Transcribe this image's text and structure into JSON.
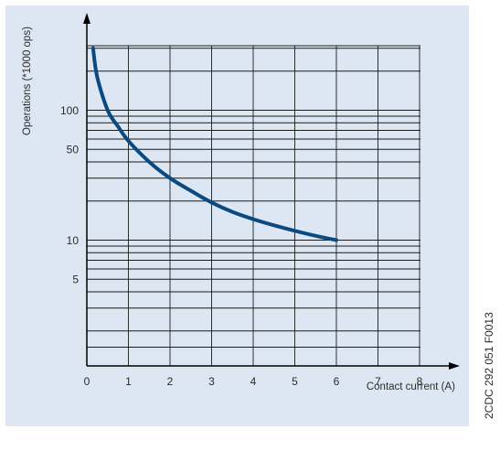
{
  "chart_data": {
    "type": "line",
    "title": "",
    "xlabel": "Contact current (A)",
    "ylabel": "Operations (*1000 ops)",
    "xlim": [
      0,
      8
    ],
    "x_ticks": [
      "0",
      "1",
      "2",
      "3",
      "4",
      "5",
      "6",
      "7",
      "8"
    ],
    "y_scale": "log",
    "y_ticks": [
      {
        "value": 100,
        "label": "100"
      },
      {
        "value": 50,
        "label": "50"
      },
      {
        "value": 10,
        "label": "10"
      },
      {
        "value": 5,
        "label": "5"
      }
    ],
    "grid": true,
    "series": [
      {
        "color": "#0a4a80",
        "x": [
          0.15,
          0.25,
          0.5,
          0.75,
          1,
          1.5,
          2,
          2.5,
          3,
          3.5,
          4,
          4.5,
          5,
          5.5,
          6
        ],
        "y": [
          300,
          180,
          100,
          75,
          58,
          40,
          30,
          24,
          19.5,
          16.5,
          14.5,
          13,
          11.8,
          10.8,
          10
        ]
      }
    ],
    "figure_code": "2CDC 292 051 F0013"
  }
}
